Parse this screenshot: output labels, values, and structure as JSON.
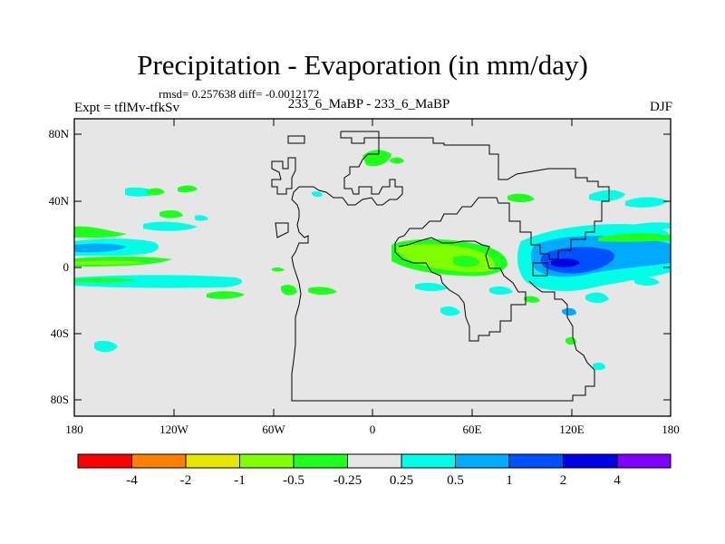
{
  "header": {
    "title": "Precipitation - Evaporation (in mm/day)",
    "stats": "rmsd= 0.257638 diff= -0.0012172",
    "experiment": "Expt = tflMv-tfkSv",
    "comparison": "233_6_MaBP - 233_6_MaBP",
    "season": "DJF"
  },
  "axes": {
    "lat_labels": [
      "80N",
      "40N",
      "0",
      "40S",
      "80S"
    ],
    "lon_labels": [
      "180",
      "120W",
      "60W",
      "0",
      "60E",
      "120E",
      "180"
    ]
  },
  "colorbar": {
    "colors": [
      "#ff0000",
      "#ff8000",
      "#e6e600",
      "#80ff00",
      "#1eff1e",
      "#e6e6e6",
      "#00ffe6",
      "#00aaff",
      "#0050ff",
      "#0000e6",
      "#8000ff"
    ],
    "labels": [
      "-4",
      "-2",
      "-1",
      "-0.5",
      "-0.25",
      "0.25",
      "0.5",
      "1",
      "2",
      "4"
    ]
  },
  "map": {
    "background_color": "#e6e6e6",
    "coastline_color": "#000000"
  }
}
